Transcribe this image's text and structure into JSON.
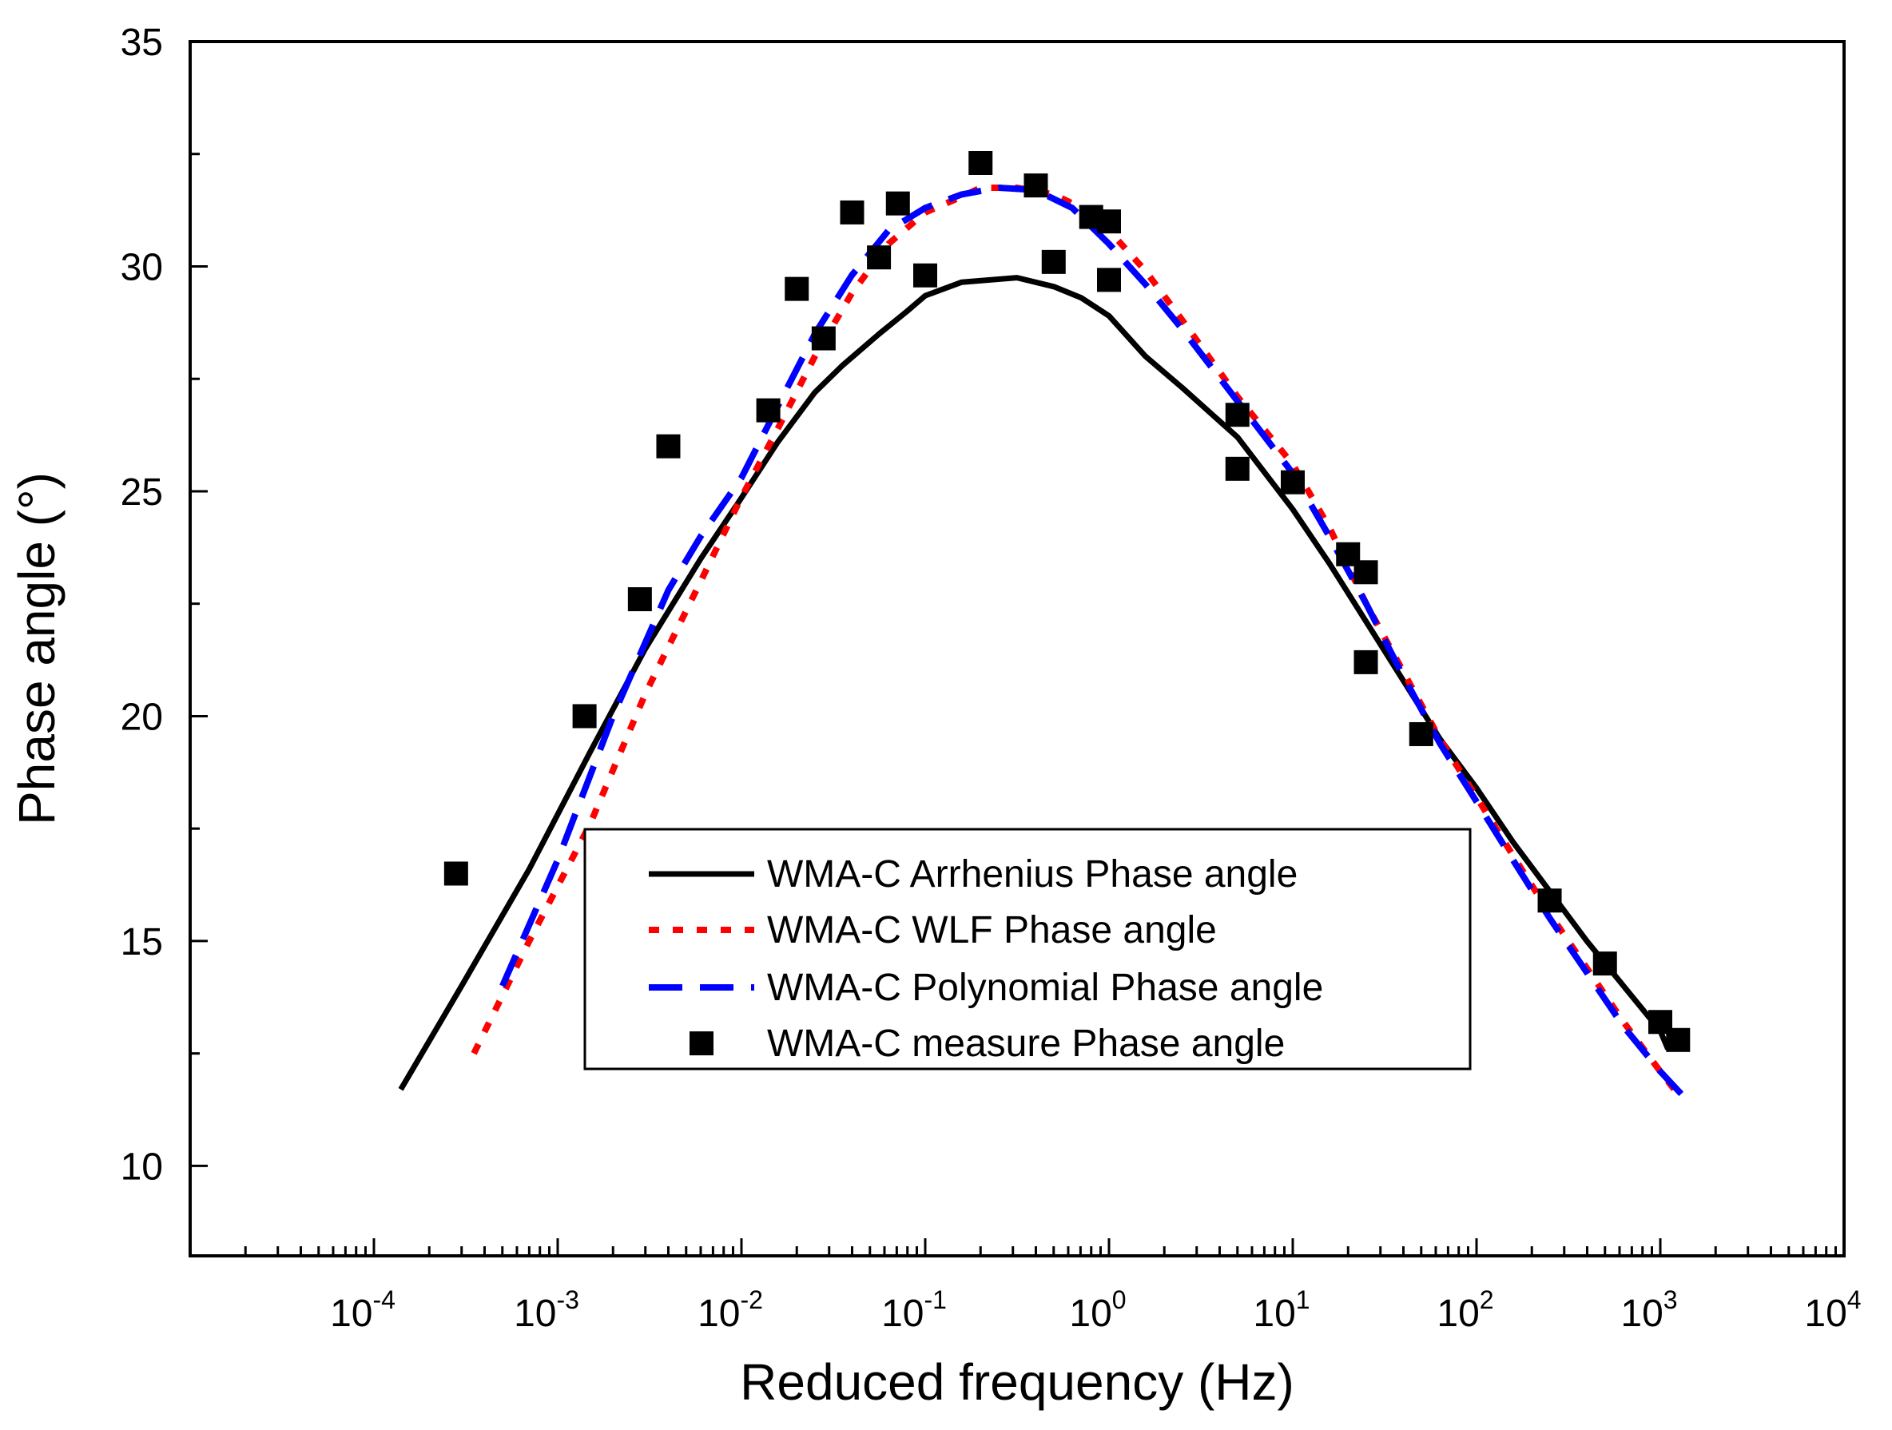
{
  "chart_data": {
    "type": "scatter",
    "title": "",
    "xlabel": "Reduced frequency (Hz)",
    "ylabel": "Phase angle (°)",
    "xscale": "log",
    "xlim": [
      1e-05,
      10000
    ],
    "ylim": [
      8,
      35
    ],
    "x_ticks": [
      {
        "value": 0.0001,
        "base": "10",
        "exp": "-4"
      },
      {
        "value": 0.001,
        "base": "10",
        "exp": "-3"
      },
      {
        "value": 0.01,
        "base": "10",
        "exp": "-2"
      },
      {
        "value": 0.1,
        "base": "10",
        "exp": "-1"
      },
      {
        "value": 1,
        "base": "10",
        "exp": "0"
      },
      {
        "value": 10,
        "base": "10",
        "exp": "1"
      },
      {
        "value": 100,
        "base": "10",
        "exp": "2"
      },
      {
        "value": 1000,
        "base": "10",
        "exp": "3"
      },
      {
        "value": 10000,
        "base": "10",
        "exp": "4"
      }
    ],
    "y_ticks": [
      "10",
      "15",
      "20",
      "25",
      "30",
      "35"
    ],
    "legend_position": "center-bottom",
    "series": [
      {
        "name": "WMA-C Arrhenius Phase angle",
        "style": "solid",
        "color": "#000000",
        "x": [
          0.00014,
          0.0003,
          0.0007,
          0.0015,
          0.003,
          0.006,
          0.0098,
          0.0158,
          0.0251,
          0.0355,
          0.0562,
          0.0794,
          0.1,
          0.158,
          0.316,
          0.501,
          0.708,
          1.0,
          1.58,
          2.51,
          5.01,
          10.0,
          15.8,
          25.1,
          39.8,
          63.1,
          100,
          158,
          251,
          398,
          631,
          1000,
          1100
        ],
        "y": [
          11.7,
          14.0,
          16.6,
          19.2,
          21.5,
          23.5,
          24.8,
          26.1,
          27.2,
          27.8,
          28.5,
          29.0,
          29.35,
          29.65,
          29.75,
          29.55,
          29.3,
          28.9,
          28.0,
          27.3,
          26.2,
          24.6,
          23.4,
          22.1,
          20.8,
          19.5,
          18.4,
          17.2,
          16.1,
          15.0,
          14.0,
          13.0,
          12.6
        ]
      },
      {
        "name": "WMA-C WLF Phase angle",
        "style": "dotted",
        "color": "#ff0000",
        "x": [
          0.00035,
          0.0007,
          0.0015,
          0.003,
          0.006,
          0.0098,
          0.0158,
          0.0251,
          0.0398,
          0.0631,
          0.1,
          0.158,
          0.2,
          0.316,
          0.501,
          0.794,
          1.0,
          1.58,
          2.51,
          5.01,
          10.0,
          15.8,
          25.1,
          39.8,
          63.1,
          100,
          158,
          251,
          398,
          631,
          1000,
          1300
        ],
        "y": [
          12.5,
          15.0,
          17.6,
          20.5,
          23.0,
          24.8,
          26.4,
          28.0,
          29.4,
          30.5,
          31.2,
          31.55,
          31.75,
          31.75,
          31.6,
          31.2,
          30.8,
          29.9,
          28.8,
          27.1,
          25.6,
          24.2,
          22.5,
          21.0,
          19.5,
          18.2,
          16.9,
          15.6,
          14.4,
          13.2,
          12.1,
          11.5
        ]
      },
      {
        "name": "WMA-C Polynomial Phase angle",
        "style": "dashed",
        "color": "#0000ff",
        "x": [
          0.0005,
          0.001,
          0.002,
          0.004,
          0.006,
          0.01,
          0.0158,
          0.0251,
          0.0398,
          0.0631,
          0.1,
          0.158,
          0.251,
          0.398,
          0.631,
          1.0,
          1.58,
          2.51,
          5.01,
          10.0,
          15.8,
          25.1,
          39.8,
          63.1,
          100,
          158,
          251,
          398,
          631,
          1000,
          1300
        ],
        "y": [
          14.0,
          16.8,
          20.0,
          22.8,
          24.0,
          25.3,
          26.9,
          28.5,
          29.8,
          30.8,
          31.3,
          31.6,
          31.75,
          31.7,
          31.3,
          30.5,
          29.6,
          28.6,
          27.0,
          25.4,
          24.0,
          22.5,
          20.9,
          19.4,
          18.1,
          16.8,
          15.5,
          14.3,
          13.1,
          12.1,
          11.6
        ]
      },
      {
        "name": "WMA-C measure Phase angle",
        "style": "square-marker",
        "color": "#000000",
        "x": [
          0.00028,
          0.0014,
          0.0028,
          0.004,
          0.014,
          0.02,
          0.028,
          0.04,
          0.056,
          0.071,
          0.1,
          0.2,
          0.4,
          0.5,
          0.8,
          1.0,
          1.0,
          5.0,
          5.0,
          10.0,
          20.0,
          25.0,
          25.0,
          50.0,
          250,
          500,
          1000,
          1250
        ],
        "y": [
          16.5,
          20.0,
          22.6,
          26.0,
          26.8,
          29.5,
          28.4,
          31.2,
          30.2,
          31.4,
          29.8,
          32.3,
          31.8,
          30.1,
          31.1,
          31.0,
          29.7,
          26.7,
          25.5,
          25.2,
          23.6,
          23.2,
          21.2,
          19.6,
          15.9,
          14.5,
          13.2,
          12.8
        ]
      }
    ]
  }
}
